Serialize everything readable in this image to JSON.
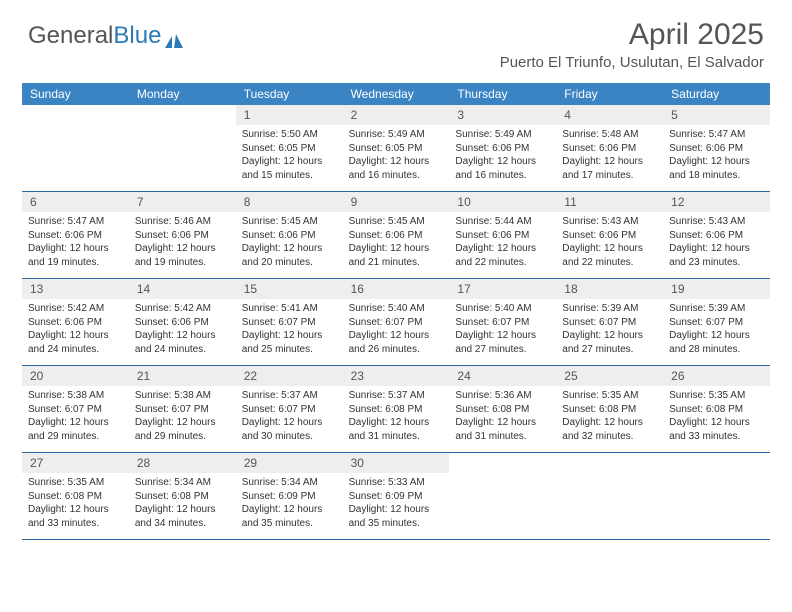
{
  "logo": {
    "part1": "General",
    "part2": "Blue"
  },
  "header": {
    "title": "April 2025",
    "location": "Puerto El Triunfo, Usulutan, El Salvador"
  },
  "colors": {
    "header_bg": "#3a84c4",
    "week_border": "#2b6aa0",
    "daynum_bg": "#eeeeee",
    "text_muted": "#555555"
  },
  "weekdays": [
    "Sunday",
    "Monday",
    "Tuesday",
    "Wednesday",
    "Thursday",
    "Friday",
    "Saturday"
  ],
  "weeks": [
    [
      {
        "n": "",
        "lines": []
      },
      {
        "n": "",
        "lines": []
      },
      {
        "n": "1",
        "lines": [
          "Sunrise: 5:50 AM",
          "Sunset: 6:05 PM",
          "Daylight: 12 hours and 15 minutes."
        ]
      },
      {
        "n": "2",
        "lines": [
          "Sunrise: 5:49 AM",
          "Sunset: 6:05 PM",
          "Daylight: 12 hours and 16 minutes."
        ]
      },
      {
        "n": "3",
        "lines": [
          "Sunrise: 5:49 AM",
          "Sunset: 6:06 PM",
          "Daylight: 12 hours and 16 minutes."
        ]
      },
      {
        "n": "4",
        "lines": [
          "Sunrise: 5:48 AM",
          "Sunset: 6:06 PM",
          "Daylight: 12 hours and 17 minutes."
        ]
      },
      {
        "n": "5",
        "lines": [
          "Sunrise: 5:47 AM",
          "Sunset: 6:06 PM",
          "Daylight: 12 hours and 18 minutes."
        ]
      }
    ],
    [
      {
        "n": "6",
        "lines": [
          "Sunrise: 5:47 AM",
          "Sunset: 6:06 PM",
          "Daylight: 12 hours and 19 minutes."
        ]
      },
      {
        "n": "7",
        "lines": [
          "Sunrise: 5:46 AM",
          "Sunset: 6:06 PM",
          "Daylight: 12 hours and 19 minutes."
        ]
      },
      {
        "n": "8",
        "lines": [
          "Sunrise: 5:45 AM",
          "Sunset: 6:06 PM",
          "Daylight: 12 hours and 20 minutes."
        ]
      },
      {
        "n": "9",
        "lines": [
          "Sunrise: 5:45 AM",
          "Sunset: 6:06 PM",
          "Daylight: 12 hours and 21 minutes."
        ]
      },
      {
        "n": "10",
        "lines": [
          "Sunrise: 5:44 AM",
          "Sunset: 6:06 PM",
          "Daylight: 12 hours and 22 minutes."
        ]
      },
      {
        "n": "11",
        "lines": [
          "Sunrise: 5:43 AM",
          "Sunset: 6:06 PM",
          "Daylight: 12 hours and 22 minutes."
        ]
      },
      {
        "n": "12",
        "lines": [
          "Sunrise: 5:43 AM",
          "Sunset: 6:06 PM",
          "Daylight: 12 hours and 23 minutes."
        ]
      }
    ],
    [
      {
        "n": "13",
        "lines": [
          "Sunrise: 5:42 AM",
          "Sunset: 6:06 PM",
          "Daylight: 12 hours and 24 minutes."
        ]
      },
      {
        "n": "14",
        "lines": [
          "Sunrise: 5:42 AM",
          "Sunset: 6:06 PM",
          "Daylight: 12 hours and 24 minutes."
        ]
      },
      {
        "n": "15",
        "lines": [
          "Sunrise: 5:41 AM",
          "Sunset: 6:07 PM",
          "Daylight: 12 hours and 25 minutes."
        ]
      },
      {
        "n": "16",
        "lines": [
          "Sunrise: 5:40 AM",
          "Sunset: 6:07 PM",
          "Daylight: 12 hours and 26 minutes."
        ]
      },
      {
        "n": "17",
        "lines": [
          "Sunrise: 5:40 AM",
          "Sunset: 6:07 PM",
          "Daylight: 12 hours and 27 minutes."
        ]
      },
      {
        "n": "18",
        "lines": [
          "Sunrise: 5:39 AM",
          "Sunset: 6:07 PM",
          "Daylight: 12 hours and 27 minutes."
        ]
      },
      {
        "n": "19",
        "lines": [
          "Sunrise: 5:39 AM",
          "Sunset: 6:07 PM",
          "Daylight: 12 hours and 28 minutes."
        ]
      }
    ],
    [
      {
        "n": "20",
        "lines": [
          "Sunrise: 5:38 AM",
          "Sunset: 6:07 PM",
          "Daylight: 12 hours and 29 minutes."
        ]
      },
      {
        "n": "21",
        "lines": [
          "Sunrise: 5:38 AM",
          "Sunset: 6:07 PM",
          "Daylight: 12 hours and 29 minutes."
        ]
      },
      {
        "n": "22",
        "lines": [
          "Sunrise: 5:37 AM",
          "Sunset: 6:07 PM",
          "Daylight: 12 hours and 30 minutes."
        ]
      },
      {
        "n": "23",
        "lines": [
          "Sunrise: 5:37 AM",
          "Sunset: 6:08 PM",
          "Daylight: 12 hours and 31 minutes."
        ]
      },
      {
        "n": "24",
        "lines": [
          "Sunrise: 5:36 AM",
          "Sunset: 6:08 PM",
          "Daylight: 12 hours and 31 minutes."
        ]
      },
      {
        "n": "25",
        "lines": [
          "Sunrise: 5:35 AM",
          "Sunset: 6:08 PM",
          "Daylight: 12 hours and 32 minutes."
        ]
      },
      {
        "n": "26",
        "lines": [
          "Sunrise: 5:35 AM",
          "Sunset: 6:08 PM",
          "Daylight: 12 hours and 33 minutes."
        ]
      }
    ],
    [
      {
        "n": "27",
        "lines": [
          "Sunrise: 5:35 AM",
          "Sunset: 6:08 PM",
          "Daylight: 12 hours and 33 minutes."
        ]
      },
      {
        "n": "28",
        "lines": [
          "Sunrise: 5:34 AM",
          "Sunset: 6:08 PM",
          "Daylight: 12 hours and 34 minutes."
        ]
      },
      {
        "n": "29",
        "lines": [
          "Sunrise: 5:34 AM",
          "Sunset: 6:09 PM",
          "Daylight: 12 hours and 35 minutes."
        ]
      },
      {
        "n": "30",
        "lines": [
          "Sunrise: 5:33 AM",
          "Sunset: 6:09 PM",
          "Daylight: 12 hours and 35 minutes."
        ]
      },
      {
        "n": "",
        "lines": []
      },
      {
        "n": "",
        "lines": []
      },
      {
        "n": "",
        "lines": []
      }
    ]
  ]
}
